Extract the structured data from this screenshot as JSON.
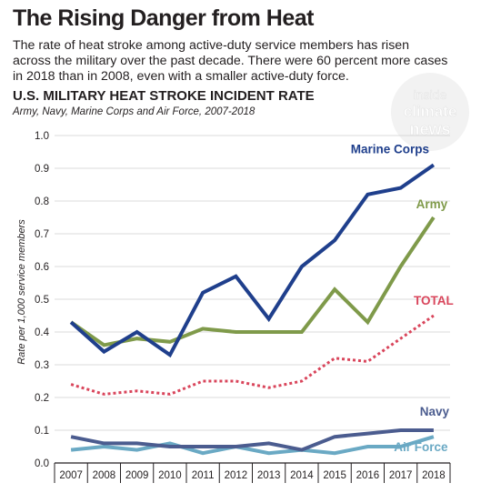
{
  "headline": "The Rising Danger from Heat",
  "dek": "The rate of heat stroke among active-duty service members has risen across the military over the past decade. There were 60 percent more cases in 2018 than in 2008, even with a smaller active-duty force.",
  "logo": {
    "lines": [
      "inside",
      "climate",
      "news"
    ],
    "icon": "inside-climate-news-logo"
  },
  "colors": {
    "marine_corps": "#1f3f8c",
    "army": "#7f9a4a",
    "total": "#d9455b",
    "navy": "#4b5c8f",
    "air_force": "#6aa9c4",
    "text": "#231f20"
  },
  "chart_data": {
    "type": "line",
    "title": "U.S. MILITARY HEAT STROKE INCIDENT RATE",
    "subtitle": "Army, Navy, Marine Corps and Air Force, 2007-2018",
    "ylabel": "Rate per 1,000 service members",
    "xlabel": "",
    "ylim": [
      0,
      1.0
    ],
    "yticks": [
      "0.0",
      "0.1",
      "0.2",
      "0.3",
      "0.4",
      "0.5",
      "0.6",
      "0.7",
      "0.8",
      "0.9",
      "1.0"
    ],
    "grid": true,
    "categories": [
      "2007",
      "2008",
      "2009",
      "2010",
      "2011",
      "2012",
      "2013",
      "2014",
      "2015",
      "2016",
      "2017",
      "2018"
    ],
    "series": [
      {
        "name": "Marine Corps",
        "key": "marine_corps",
        "style": "solid",
        "values": [
          0.43,
          0.34,
          0.4,
          0.33,
          0.52,
          0.57,
          0.44,
          0.6,
          0.68,
          0.82,
          0.84,
          0.91
        ]
      },
      {
        "name": "Army",
        "key": "army",
        "style": "solid",
        "values": [
          0.43,
          0.36,
          0.38,
          0.37,
          0.41,
          0.4,
          0.4,
          0.4,
          0.53,
          0.43,
          0.6,
          0.75
        ]
      },
      {
        "name": "TOTAL",
        "key": "total",
        "style": "dotted",
        "values": [
          0.24,
          0.21,
          0.22,
          0.21,
          0.25,
          0.25,
          0.23,
          0.25,
          0.32,
          0.31,
          0.38,
          0.45
        ]
      },
      {
        "name": "Navy",
        "key": "navy",
        "style": "solid",
        "values": [
          0.08,
          0.06,
          0.06,
          0.05,
          0.05,
          0.05,
          0.06,
          0.04,
          0.08,
          0.09,
          0.1,
          0.1
        ]
      },
      {
        "name": "Air Force",
        "key": "air_force",
        "style": "solid",
        "values": [
          0.04,
          0.05,
          0.04,
          0.06,
          0.03,
          0.05,
          0.03,
          0.04,
          0.03,
          0.05,
          0.05,
          0.08
        ]
      }
    ]
  }
}
